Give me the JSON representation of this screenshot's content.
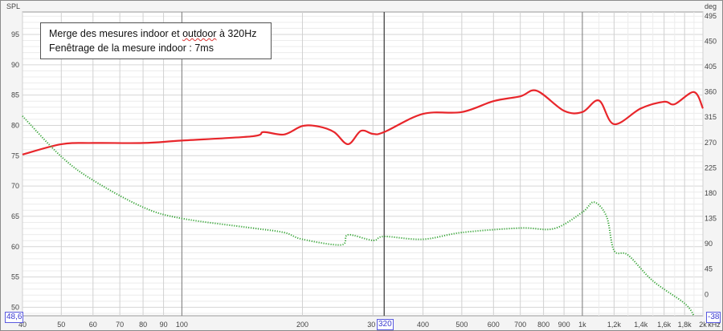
{
  "chart_data": {
    "type": "line",
    "annotation": {
      "line1_prefix": "Merge des mesures indoor et ",
      "line1_underlined": "outdoor",
      "line1_suffix": " à 320Hz",
      "line2": "Fenêtrage de la mesure indoor : 7ms"
    },
    "ylabel_left": "SPL",
    "ylabel_right": "deg",
    "xunit": "kHz",
    "x_scale": "log",
    "xlim": [
      40,
      2000
    ],
    "ylim_left": [
      48.6,
      98.7
    ],
    "ylim_right": [
      -38,
      502
    ],
    "grid": true,
    "x_ticks": [
      {
        "v": 40,
        "l": "40"
      },
      {
        "v": 50,
        "l": "50"
      },
      {
        "v": 60,
        "l": "60"
      },
      {
        "v": 70,
        "l": "70"
      },
      {
        "v": 80,
        "l": "80"
      },
      {
        "v": 90,
        "l": "90"
      },
      {
        "v": 100,
        "l": "100"
      },
      {
        "v": 200,
        "l": "200"
      },
      {
        "v": 300,
        "l": "300"
      },
      {
        "v": 400,
        "l": "400"
      },
      {
        "v": 500,
        "l": "500"
      },
      {
        "v": 600,
        "l": "600"
      },
      {
        "v": 700,
        "l": "700"
      },
      {
        "v": 800,
        "l": "800"
      },
      {
        "v": 900,
        "l": "900"
      },
      {
        "v": 1000,
        "l": "1k"
      },
      {
        "v": 1200,
        "l": "1,2k"
      },
      {
        "v": 1400,
        "l": "1,4k"
      },
      {
        "v": 1600,
        "l": "1,6k"
      },
      {
        "v": 1800,
        "l": "1,8k"
      },
      {
        "v": 2000,
        "l": "2k"
      }
    ],
    "y_ticks_left": [
      50,
      55,
      60,
      65,
      70,
      75,
      80,
      85,
      90,
      95
    ],
    "y_ticks_right": [
      0,
      45,
      90,
      135,
      180,
      225,
      270,
      315,
      360,
      405,
      450,
      495
    ],
    "cursor": {
      "x": "320",
      "y_left": "48,6",
      "y_right": "-38"
    },
    "series": [
      {
        "role": "SPL",
        "axis": "left",
        "color": "#e8262b",
        "style": "solid",
        "x": [
          40,
          50,
          60,
          80,
          100,
          150,
          160,
          180,
          200,
          220,
          240,
          260,
          280,
          300,
          320,
          400,
          500,
          600,
          700,
          770,
          900,
          1000,
          1100,
          1200,
          1400,
          1600,
          1700,
          1900,
          2000
        ],
        "y": [
          75.2,
          76.9,
          77.1,
          77.1,
          77.5,
          78.2,
          78.9,
          78.5,
          79.9,
          79.8,
          78.9,
          76.9,
          79.1,
          78.6,
          78.9,
          81.9,
          82.2,
          84.0,
          84.8,
          85.7,
          82.4,
          82.2,
          84.1,
          80.2,
          82.8,
          83.9,
          83.5,
          85.5,
          82.8
        ]
      },
      {
        "role": "phase",
        "axis": "right",
        "color": "#3aa63a",
        "style": "dotted",
        "x": [
          40,
          50,
          60,
          80,
          100,
          150,
          180,
          200,
          250,
          260,
          300,
          320,
          400,
          500,
          700,
          850,
          1000,
          1070,
          1150,
          1200,
          1300,
          1500,
          1800,
          1900
        ],
        "y": [
          317,
          245,
          203,
          155,
          135,
          118,
          110,
          98,
          88,
          106,
          96,
          103,
          98,
          110,
          118,
          117,
          146,
          164,
          138,
          78,
          70,
          24,
          -16,
          -38
        ]
      }
    ]
  }
}
